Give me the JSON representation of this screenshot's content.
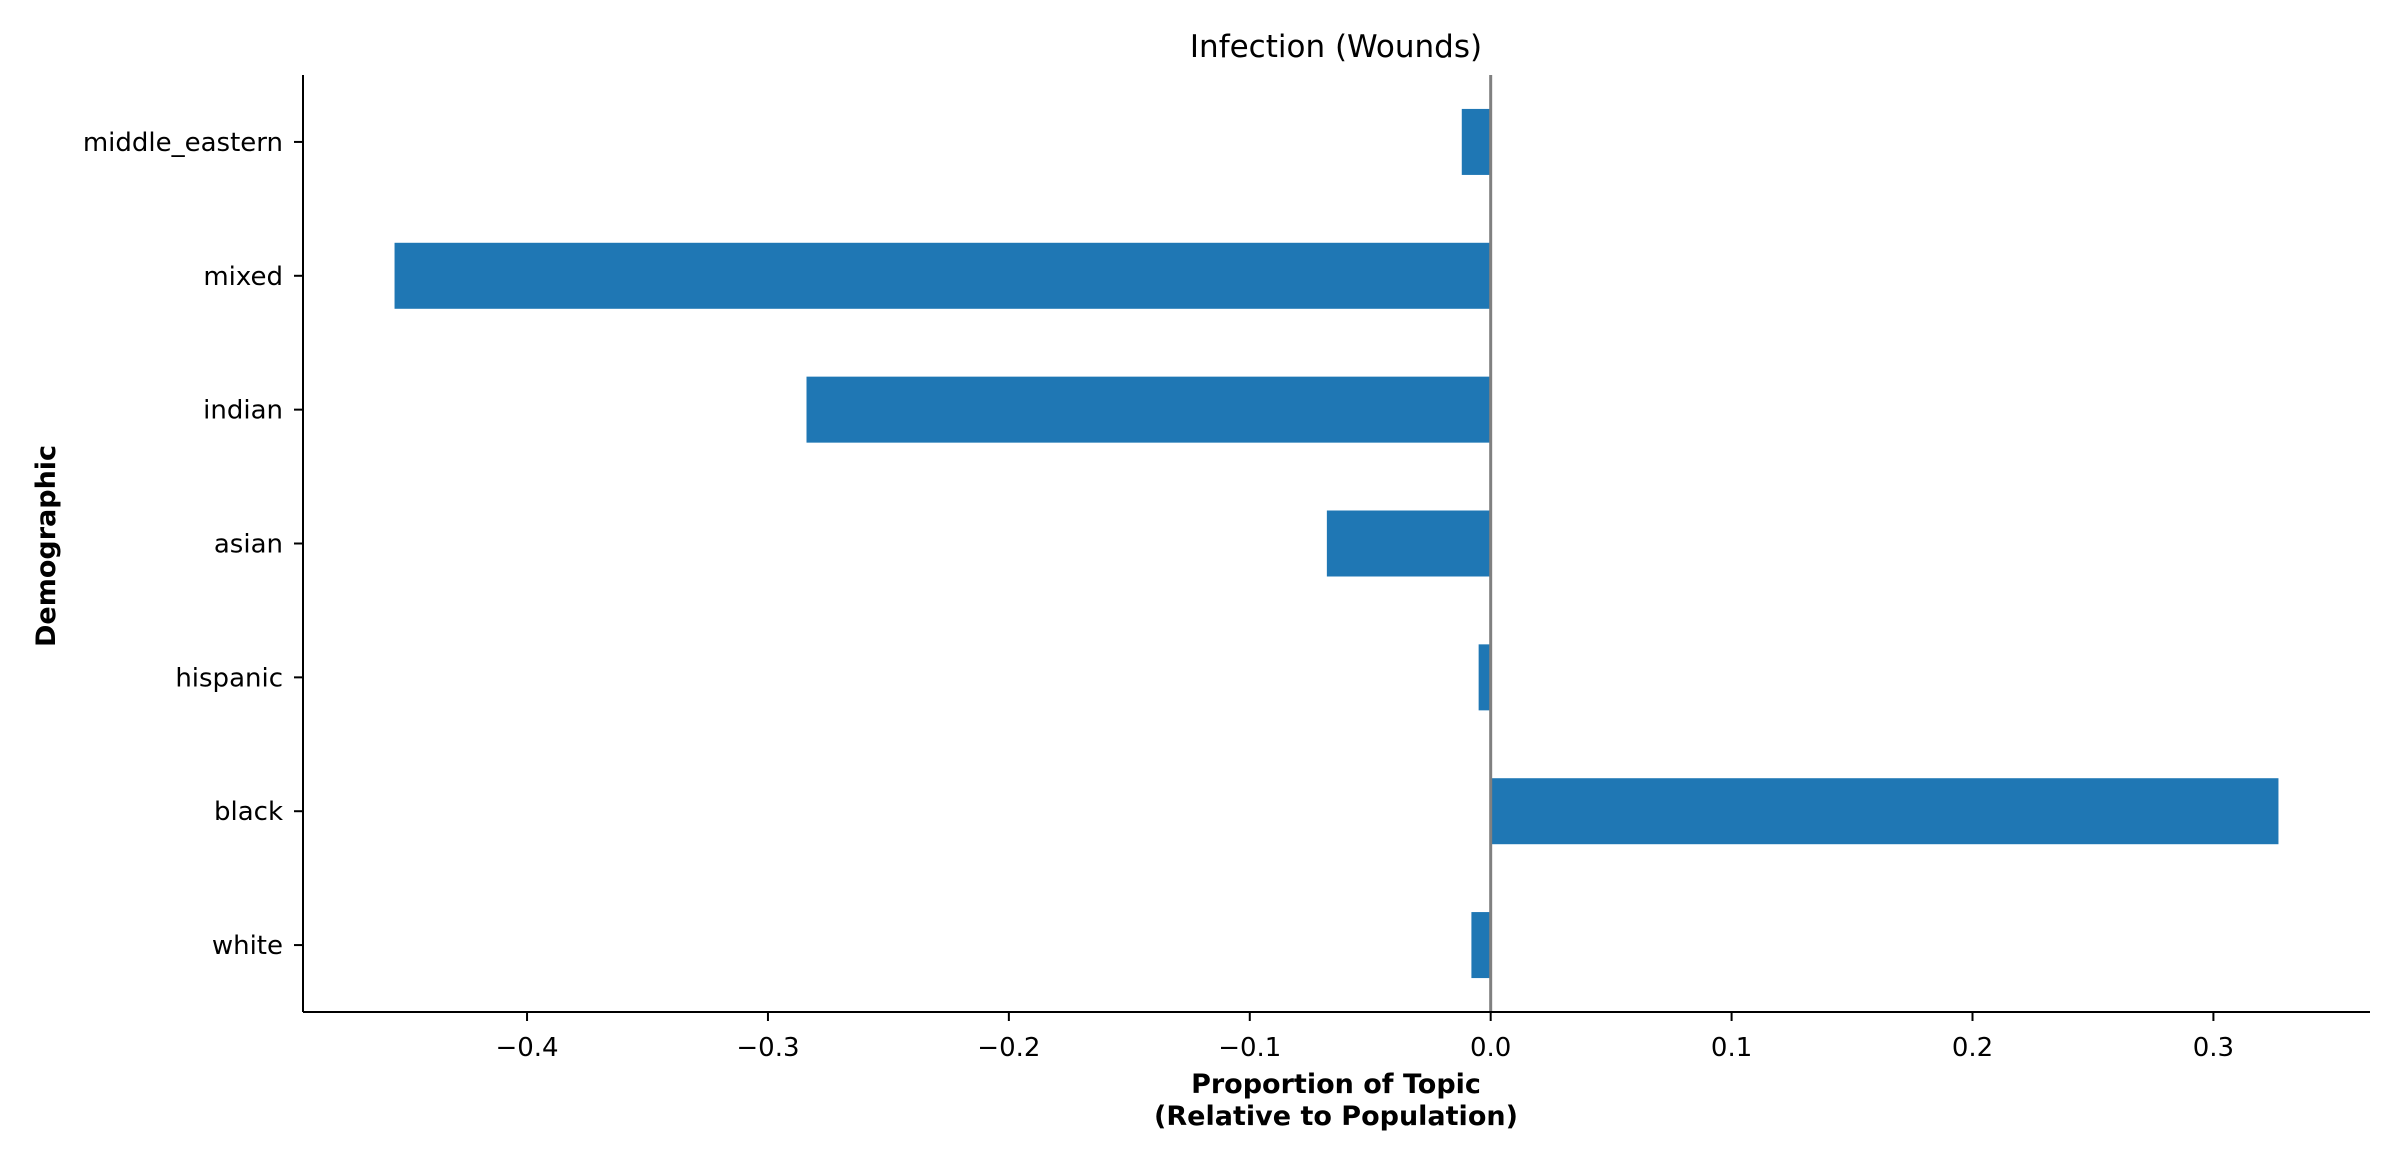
{
  "chart_data": {
    "type": "bar",
    "orientation": "horizontal",
    "title": "Infection (Wounds)",
    "xlabel_line1": "Proportion of Topic",
    "xlabel_line2": "(Relative to Population)",
    "ylabel": "Demographic",
    "categories": [
      "white",
      "black",
      "hispanic",
      "asian",
      "indian",
      "mixed",
      "middle_eastern"
    ],
    "values": [
      -0.008,
      0.327,
      -0.005,
      -0.068,
      -0.284,
      -0.455,
      -0.012
    ],
    "xlim": [
      -0.493,
      0.365
    ],
    "xticks": [
      -0.4,
      -0.3,
      -0.2,
      -0.1,
      0.0,
      0.1,
      0.2,
      0.3
    ],
    "xtick_labels": [
      "−0.4",
      "−0.3",
      "−0.2",
      "−0.1",
      "0.0",
      "0.1",
      "0.2",
      "0.3"
    ],
    "zero_line": true,
    "grid": false,
    "colors": {
      "bar": "#1f77b4",
      "zero_line": "#808080",
      "axis": "#000000"
    }
  }
}
